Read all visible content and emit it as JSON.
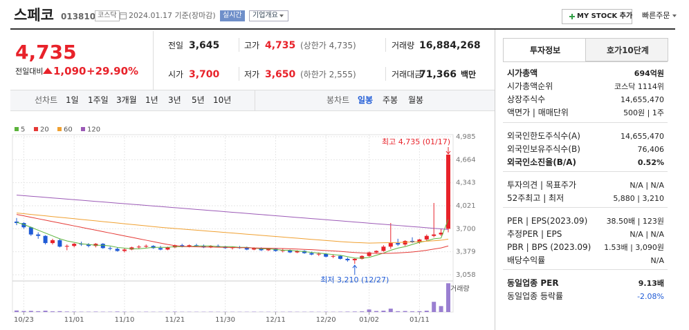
{
  "header": {
    "name": "스페코",
    "code": "013810",
    "market": "코스닥",
    "date": "2024.01.17 기준(장마감)",
    "realtime": "실시간",
    "overview": "기업개요",
    "mystock": "MY STOCK 추가",
    "order": "빠른주문"
  },
  "quote": {
    "price": "4,735",
    "change_label": "전일대비",
    "change": "1,090",
    "rate": "+29.90%",
    "items": [
      {
        "label": "전일",
        "value": "3,645"
      },
      {
        "label": "고가",
        "value": "4,735",
        "note": "(상한가 4,735)"
      },
      {
        "label": "거래량",
        "value": "16,884,268"
      },
      {
        "label": "시가",
        "value": "3,700"
      },
      {
        "label": "저가",
        "value": "3,650",
        "note": "(하한가 2,555)"
      },
      {
        "label": "거래대금",
        "value": "71,366",
        "unit": "백만"
      }
    ]
  },
  "tabs": {
    "line": "선차트",
    "periods": [
      "1일",
      "1주일",
      "3개월",
      "1년",
      "3년",
      "5년",
      "10년"
    ],
    "candle": "봉차트",
    "candle_periods": [
      "일봉",
      "주봉",
      "월봉"
    ]
  },
  "chart_data": {
    "type": "candlestick",
    "categories": [
      null,
      "10/23",
      null,
      null,
      null,
      null,
      null,
      null,
      "11/01",
      null,
      null,
      null,
      null,
      null,
      null,
      "11/10",
      null,
      null,
      null,
      null,
      null,
      null,
      "11/21",
      null,
      null,
      null,
      null,
      null,
      null,
      "11/30",
      null,
      null,
      null,
      null,
      null,
      null,
      "12/11",
      null,
      null,
      null,
      null,
      null,
      null,
      "12/20",
      null,
      null,
      null,
      null,
      null,
      "01/02",
      null,
      null,
      null,
      null,
      null,
      null,
      "01/11",
      null,
      null,
      null,
      null
    ],
    "open": [
      3800,
      3780,
      3720,
      3620,
      3600,
      3500,
      3540,
      3450,
      3460,
      3490,
      3480,
      3460,
      3490,
      3430,
      3420,
      3390,
      3410,
      3440,
      3450,
      3460,
      3430,
      3410,
      3440,
      3470,
      3450,
      3470,
      3460,
      3440,
      3460,
      3450,
      3430,
      3440,
      3430,
      3410,
      3430,
      3400,
      3420,
      3390,
      3400,
      3370,
      3390,
      3360,
      3340,
      3350,
      3310,
      3320,
      3280,
      3260,
      3280,
      3320,
      3370,
      3390,
      3450,
      3500,
      3480,
      3530,
      3510,
      3550,
      3600,
      3620,
      3700
    ],
    "high": [
      3850,
      3790,
      3730,
      3650,
      3610,
      3560,
      3560,
      3480,
      3500,
      3520,
      3500,
      3500,
      3500,
      3450,
      3440,
      3430,
      3450,
      3470,
      3480,
      3470,
      3460,
      3450,
      3480,
      3490,
      3480,
      3490,
      3480,
      3470,
      3480,
      3460,
      3450,
      3460,
      3450,
      3440,
      3440,
      3430,
      3430,
      3420,
      3410,
      3400,
      3400,
      3380,
      3370,
      3360,
      3340,
      3330,
      3300,
      3290,
      3330,
      3380,
      3400,
      3470,
      3780,
      3560,
      3540,
      3580,
      3560,
      3620,
      4060,
      3700,
      4735
    ],
    "low": [
      3750,
      3700,
      3600,
      3560,
      3480,
      3480,
      3440,
      3400,
      3440,
      3460,
      3440,
      3440,
      3420,
      3400,
      3380,
      3370,
      3400,
      3420,
      3430,
      3420,
      3400,
      3400,
      3430,
      3440,
      3440,
      3450,
      3430,
      3430,
      3440,
      3420,
      3410,
      3420,
      3400,
      3400,
      3390,
      3390,
      3380,
      3370,
      3360,
      3360,
      3350,
      3330,
      3320,
      3300,
      3290,
      3270,
      3240,
      3210,
      3270,
      3310,
      3350,
      3380,
      3420,
      3460,
      3460,
      3500,
      3490,
      3530,
      3580,
      3600,
      3650
    ],
    "close": [
      3780,
      3720,
      3620,
      3600,
      3500,
      3540,
      3450,
      3460,
      3490,
      3480,
      3460,
      3490,
      3430,
      3420,
      3390,
      3410,
      3440,
      3450,
      3460,
      3430,
      3410,
      3440,
      3470,
      3450,
      3470,
      3460,
      3440,
      3460,
      3450,
      3430,
      3440,
      3430,
      3410,
      3430,
      3400,
      3420,
      3390,
      3400,
      3370,
      3390,
      3360,
      3340,
      3350,
      3310,
      3320,
      3280,
      3260,
      3280,
      3320,
      3370,
      3390,
      3450,
      3500,
      3480,
      3530,
      3510,
      3550,
      3600,
      3620,
      3645,
      4735
    ],
    "volume": [
      900000,
      600000,
      700000,
      500000,
      800000,
      400000,
      500000,
      300000,
      250000,
      200000,
      200000,
      250000,
      200000,
      200000,
      300000,
      200000,
      150000,
      150000,
      200000,
      150000,
      150000,
      200000,
      250000,
      150000,
      150000,
      150000,
      150000,
      200000,
      150000,
      150000,
      150000,
      150000,
      150000,
      200000,
      150000,
      150000,
      150000,
      150000,
      200000,
      150000,
      150000,
      200000,
      150000,
      200000,
      150000,
      200000,
      250000,
      300000,
      400000,
      1500000,
      600000,
      800000,
      2000000,
      500000,
      600000,
      400000,
      500000,
      800000,
      6000000,
      3500000,
      16884268
    ],
    "up_color": "#e8222a",
    "down_color": "#1f5bd6",
    "volume_color": "#9a7fd1",
    "moving_averages": [
      {
        "name": "5",
        "color": "#5bb33b",
        "values": [
          3790,
          3760,
          3720,
          3680,
          3640,
          3600,
          3560,
          3530,
          3510,
          3490,
          3480,
          3470,
          3470,
          3460,
          3440,
          3430,
          3420,
          3420,
          3430,
          3440,
          3440,
          3440,
          3450,
          3450,
          3450,
          3460,
          3460,
          3460,
          3450,
          3450,
          3450,
          3440,
          3440,
          3430,
          3420,
          3420,
          3410,
          3400,
          3400,
          3390,
          3380,
          3370,
          3360,
          3350,
          3340,
          3330,
          3310,
          3290,
          3290,
          3300,
          3330,
          3360,
          3400,
          3430,
          3450,
          3480,
          3510,
          3530,
          3560,
          3570,
          3830
        ]
      },
      {
        "name": "20",
        "color": "#e53935",
        "values": [
          3900,
          3880,
          3860,
          3840,
          3820,
          3800,
          3780,
          3760,
          3740,
          3720,
          3700,
          3680,
          3660,
          3640,
          3620,
          3600,
          3580,
          3560,
          3540,
          3520,
          3500,
          3480,
          3465,
          3455,
          3450,
          3448,
          3446,
          3444,
          3442,
          3440,
          3438,
          3436,
          3434,
          3432,
          3430,
          3428,
          3426,
          3424,
          3420,
          3416,
          3412,
          3408,
          3402,
          3396,
          3390,
          3384,
          3376,
          3368,
          3362,
          3358,
          3356,
          3356,
          3358,
          3362,
          3368,
          3376,
          3386,
          3400,
          3416,
          3432,
          3460
        ]
      },
      {
        "name": "60",
        "color": "#f0a030",
        "values": [
          3920,
          3910,
          3900,
          3890,
          3880,
          3870,
          3860,
          3850,
          3840,
          3830,
          3820,
          3810,
          3800,
          3790,
          3780,
          3770,
          3760,
          3750,
          3740,
          3730,
          3720,
          3712,
          3704,
          3696,
          3688,
          3680,
          3672,
          3664,
          3656,
          3648,
          3640,
          3632,
          3624,
          3616,
          3608,
          3600,
          3592,
          3584,
          3576,
          3568,
          3560,
          3552,
          3544,
          3536,
          3528,
          3520,
          3514,
          3508,
          3504,
          3500,
          3502,
          3504,
          3506,
          3508,
          3512,
          3516,
          3520,
          3526,
          3532,
          3540,
          3555
        ]
      },
      {
        "name": "120",
        "color": "#9b59b6",
        "values": [
          4170,
          4162,
          4154,
          4146,
          4138,
          4130,
          4122,
          4114,
          4106,
          4098,
          4090,
          4082,
          4074,
          4066,
          4058,
          4050,
          4042,
          4034,
          4026,
          4018,
          4010,
          4002,
          3994,
          3986,
          3978,
          3970,
          3962,
          3954,
          3946,
          3938,
          3930,
          3922,
          3914,
          3906,
          3898,
          3890,
          3882,
          3874,
          3866,
          3858,
          3850,
          3842,
          3834,
          3826,
          3818,
          3810,
          3802,
          3794,
          3786,
          3778,
          3770,
          3762,
          3754,
          3746,
          3738,
          3730,
          3722,
          3714,
          3706,
          3698,
          3690
        ]
      }
    ],
    "ylim": [
      2990,
      5014
    ],
    "yticks": [
      {
        "value": 3058,
        "label": "3,058"
      },
      {
        "value": 3379,
        "label": "3,379"
      },
      {
        "value": 3700,
        "label": "3,700"
      },
      {
        "value": 4021,
        "label": "4,021"
      },
      {
        "value": 4343,
        "label": "4,343"
      },
      {
        "value": 4664,
        "label": "4,664"
      },
      {
        "value": 4985,
        "label": "4,985"
      }
    ],
    "vlim": [
      0,
      17000000
    ],
    "grid": true,
    "max_label": "최고 4,735 (01/17)",
    "min_label": "최저 3,210 (12/27)",
    "volume_label": "거래량"
  },
  "info": {
    "tabs": [
      "투자정보",
      "호가10단계"
    ],
    "groups": [
      [
        {
          "label": "시가총액",
          "value": "694억원",
          "strong": true
        },
        {
          "label": "시가총액순위",
          "value": "코스닥 1114위"
        },
        {
          "label": "상장주식수",
          "value": "14,655,470"
        },
        {
          "label": "액면가 | 매매단위",
          "value": "500원 | 1주"
        }
      ],
      [
        {
          "label": "외국인한도주식수(A)",
          "value": "14,655,470"
        },
        {
          "label": "외국인보유주식수(B)",
          "value": "76,406"
        },
        {
          "label": "외국인소진율(B/A)",
          "value": "0.52%",
          "strong": true
        }
      ],
      [
        {
          "label": "투자의견 | 목표주가",
          "value": "N/A | N/A"
        },
        {
          "label": "52주최고 | 최저",
          "value": "5,880 | 3,210"
        }
      ],
      [
        {
          "label": "PER | EPS(2023.09)",
          "value": "38.50배 | 123원"
        },
        {
          "label": "추정PER | EPS",
          "value": "N/A | N/A"
        },
        {
          "label": "PBR | BPS (2023.09)",
          "value": "1.53배 | 3,090원"
        },
        {
          "label": "배당수익률",
          "value": "N/A"
        }
      ],
      [
        {
          "label": "동일업종 PER",
          "value": "9.13배",
          "strong": true
        },
        {
          "label": "동일업종 등락률",
          "value": "-2.08%",
          "value_color": "#1f5bd6"
        }
      ]
    ]
  }
}
